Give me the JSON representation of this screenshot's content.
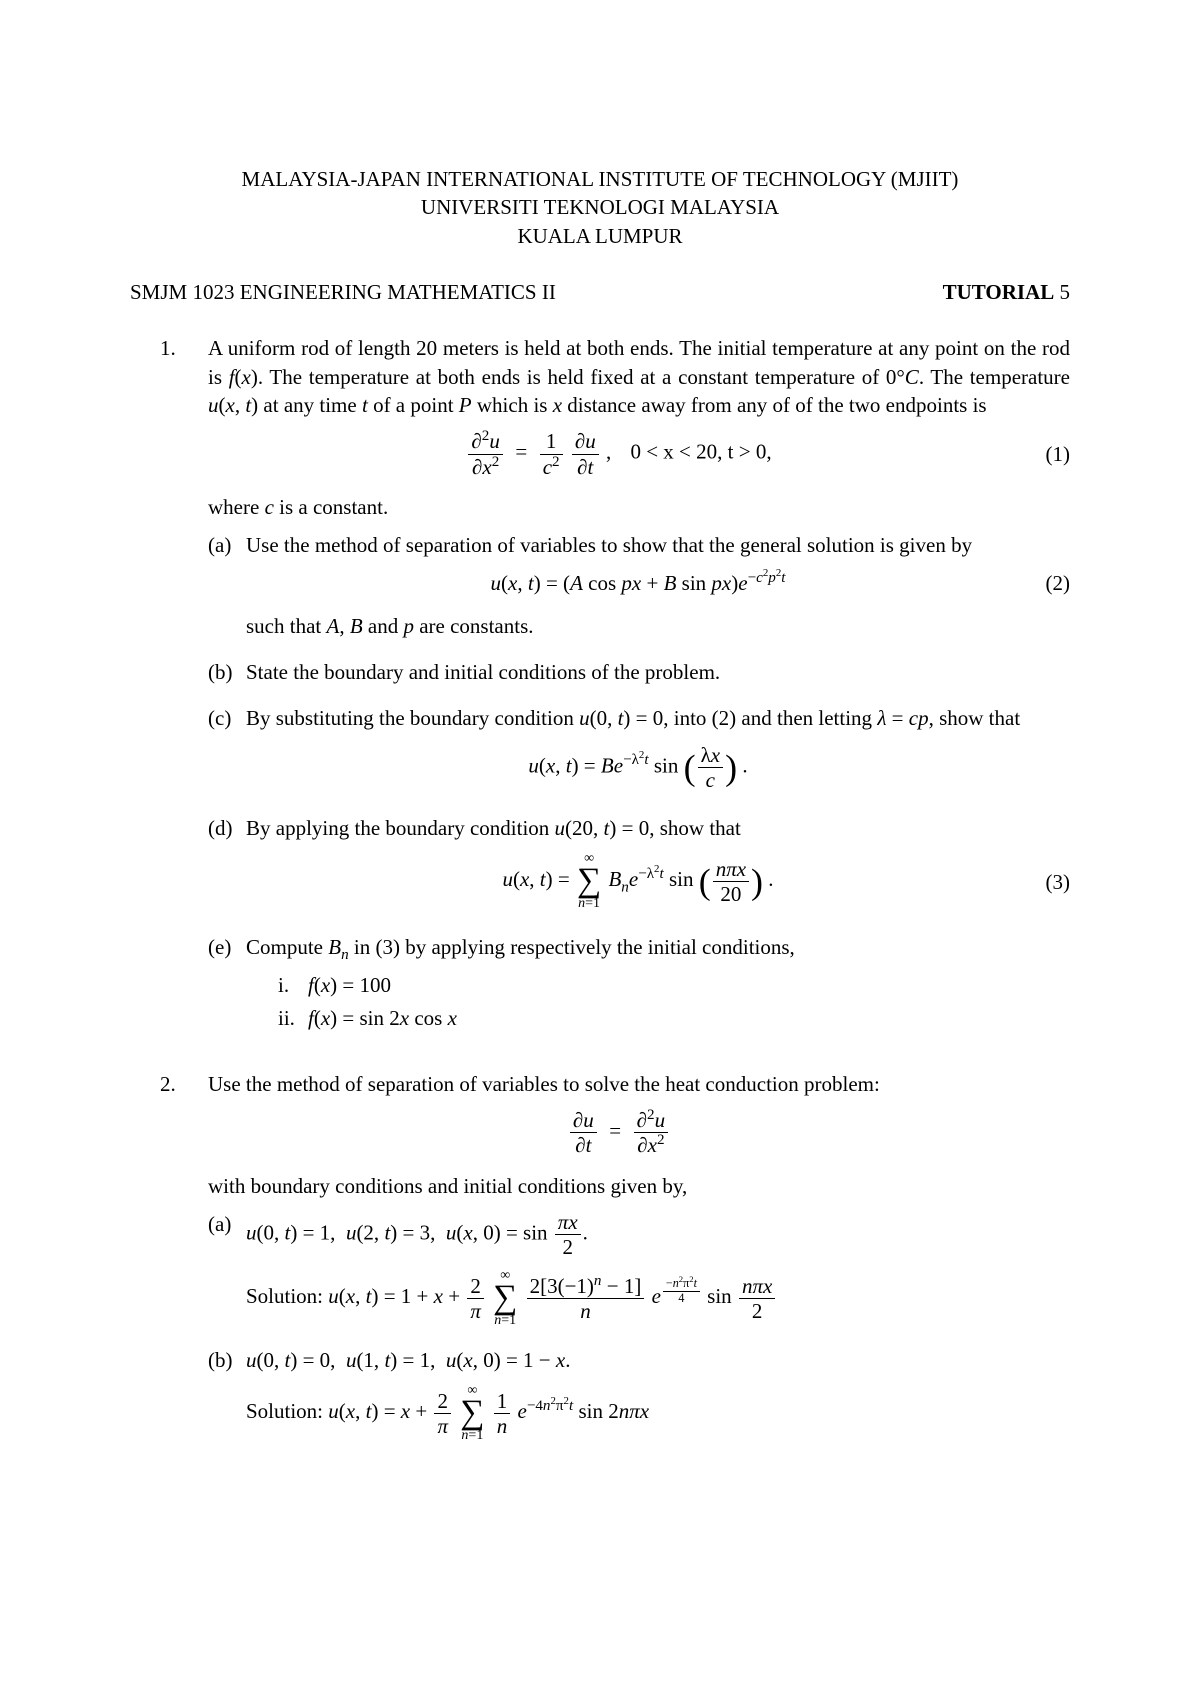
{
  "header": {
    "line1": "MALAYSIA-JAPAN INTERNATIONAL INSTITUTE OF TECHNOLOGY (MJIIT)",
    "line2": "UNIVERSITI TEKNOLOGI MALAYSIA",
    "line3": "KUALA LUMPUR"
  },
  "meta": {
    "course": "SMJM 1023 ENGINEERING MATHEMATICS II",
    "tutorial_label": "TUTORIAL",
    "tutorial_num": "5"
  },
  "q1": {
    "num": "1.",
    "intro": "A uniform rod of length 20 meters is held at both ends. The initial temperature at any point on the rod is ƒ(x). The temperature at both ends is held fixed at a constant temperature of 0°C. The temperature u(x, t) at any time t of a point P which is x distance away from any of of the two endpoints is",
    "eq1_tag": "(1)",
    "eq1_domain": "0 < x < 20, t > 0,",
    "where": "where c is a constant.",
    "a_label": "(a)",
    "a_text": "Use the method of separation of variables to show that the general solution is given by",
    "eq2_lhs": "u(x, t) = (A cos px + B sin px)e",
    "eq2_exp": "−c²p²t",
    "eq2_tag": "(2)",
    "a_after": "such that A, B and p are constants.",
    "b_label": "(b)",
    "b_text": "State the boundary and initial conditions of the problem.",
    "c_label": "(c)",
    "c_text": "By substituting the boundary condition u(0, t) = 0, into (2) and then letting λ = cp, show that",
    "d_label": "(d)",
    "d_text": "By applying the boundary condition u(20, t) = 0, show that",
    "eq3_tag": "(3)",
    "e_label": "(e)",
    "e_text": "Compute Bₙ in (3) by applying respectively the initial conditions,",
    "e_i_label": "i.",
    "e_i": "f(x) = 100",
    "e_ii_label": "ii.",
    "e_ii": "f(x) = sin 2x cos x"
  },
  "q2": {
    "num": "2.",
    "intro": "Use the method of separation of variables to solve the heat conduction problem:",
    "cond_intro": "with boundary conditions and initial conditions given by,",
    "a_label": "(a)",
    "a_cond_prefix": "u(0, t) = 1,  u(2, t) = 3,  u(x, 0) = sin",
    "a_sol_label": "Solution:",
    "b_label": "(b)",
    "b_cond": "u(0, t) = 0,  u(1, t) = 1,  u(x, 0) = 1 − x.",
    "b_sol_label": "Solution:"
  }
}
